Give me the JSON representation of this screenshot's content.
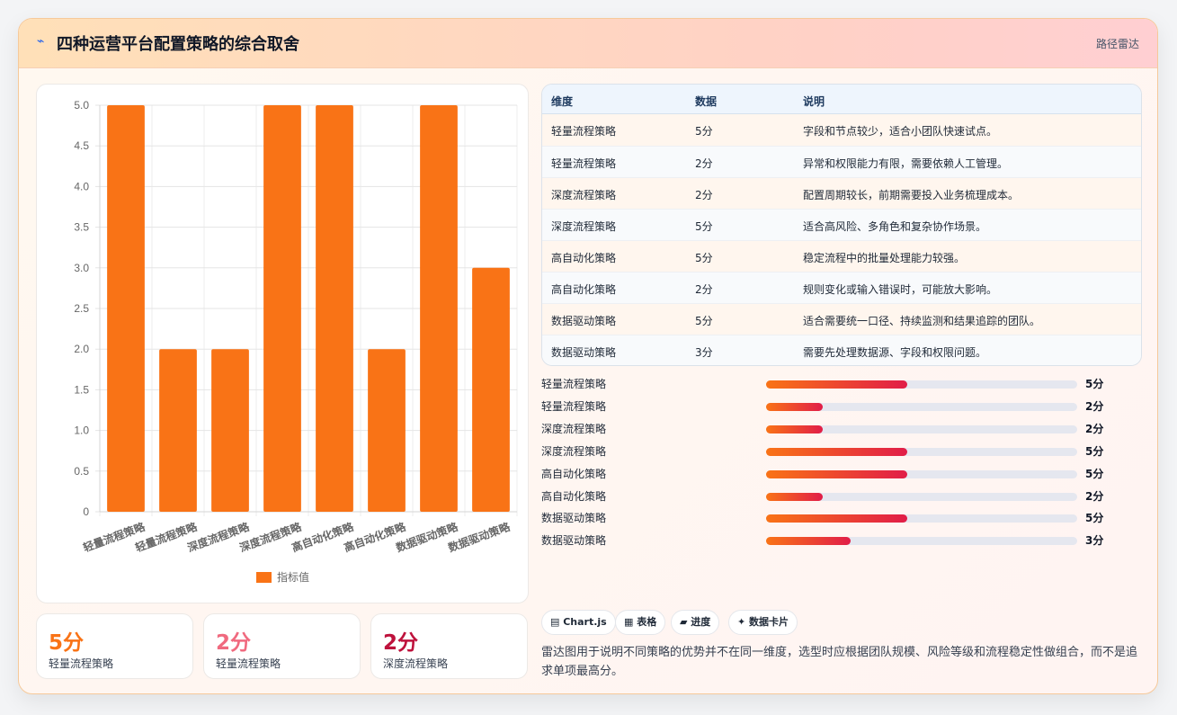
{
  "header": {
    "icon": "pulse-icon",
    "title": "四种运营平台配置策略的综合取舍",
    "tag": "路径雷达"
  },
  "chart_data": {
    "type": "bar",
    "categories": [
      "轻量流程策略",
      "轻量流程策略",
      "深度流程策略",
      "深度流程策略",
      "高自动化策略",
      "高自动化策略",
      "数据驱动策略",
      "数据驱动策略"
    ],
    "series": [
      {
        "name": "指标值",
        "values": [
          5,
          2,
          2,
          5,
          5,
          2,
          5,
          3
        ]
      }
    ],
    "ylim": [
      0,
      5
    ],
    "yticks": [
      "0",
      "0.5",
      "1.0",
      "1.5",
      "2.0",
      "2.5",
      "3.0",
      "3.5",
      "4.0",
      "4.5",
      "5.0"
    ],
    "grid": true,
    "legend": "bottom",
    "color": "#f97316"
  },
  "stats": [
    {
      "value": "5分",
      "label": "轻量流程策略",
      "color": "#f97316"
    },
    {
      "value": "2分",
      "label": "轻量流程策略",
      "color": "#f06a7f"
    },
    {
      "value": "2分",
      "label": "深度流程策略",
      "color": "#be123c"
    }
  ],
  "table": {
    "headers": [
      "维度",
      "数据",
      "说明"
    ],
    "rows": [
      [
        "轻量流程策略",
        "5分",
        "字段和节点较少，适合小团队快速试点。"
      ],
      [
        "轻量流程策略",
        "2分",
        "异常和权限能力有限，需要依赖人工管理。"
      ],
      [
        "深度流程策略",
        "2分",
        "配置周期较长，前期需要投入业务梳理成本。"
      ],
      [
        "深度流程策略",
        "5分",
        "适合高风险、多角色和复杂协作场景。"
      ],
      [
        "高自动化策略",
        "5分",
        "稳定流程中的批量处理能力较强。"
      ],
      [
        "高自动化策略",
        "2分",
        "规则变化或输入错误时，可能放大影响。"
      ],
      [
        "数据驱动策略",
        "5分",
        "适合需要统一口径、持续监测和结果追踪的团队。"
      ],
      [
        "数据驱动策略",
        "3分",
        "需要先处理数据源、字段和权限问题。"
      ]
    ]
  },
  "progress": [
    {
      "label": "轻量流程策略",
      "value": 5,
      "text": "5分"
    },
    {
      "label": "轻量流程策略",
      "value": 2,
      "text": "2分"
    },
    {
      "label": "深度流程策略",
      "value": 2,
      "text": "2分"
    },
    {
      "label": "深度流程策略",
      "value": 5,
      "text": "5分"
    },
    {
      "label": "高自动化策略",
      "value": 5,
      "text": "5分"
    },
    {
      "label": "高自动化策略",
      "value": 2,
      "text": "2分"
    },
    {
      "label": "数据驱动策略",
      "value": 5,
      "text": "5分"
    },
    {
      "label": "数据驱动策略",
      "value": 3,
      "text": "3分"
    }
  ],
  "progress_max": 11,
  "chips": [
    {
      "icon": "chart-icon",
      "label": "▤ Chart.js"
    },
    {
      "icon": "table-icon",
      "label": "▦ 表格"
    },
    {
      "icon": "progress-icon",
      "label": "▰ 进度"
    },
    {
      "icon": "card-icon",
      "label": "✦ 数据卡片"
    }
  ],
  "note": "雷达图用于说明不同策略的优势并不在同一维度，选型时应根据团队规模、风险等级和流程稳定性做组合，而不是追求单项最高分。"
}
